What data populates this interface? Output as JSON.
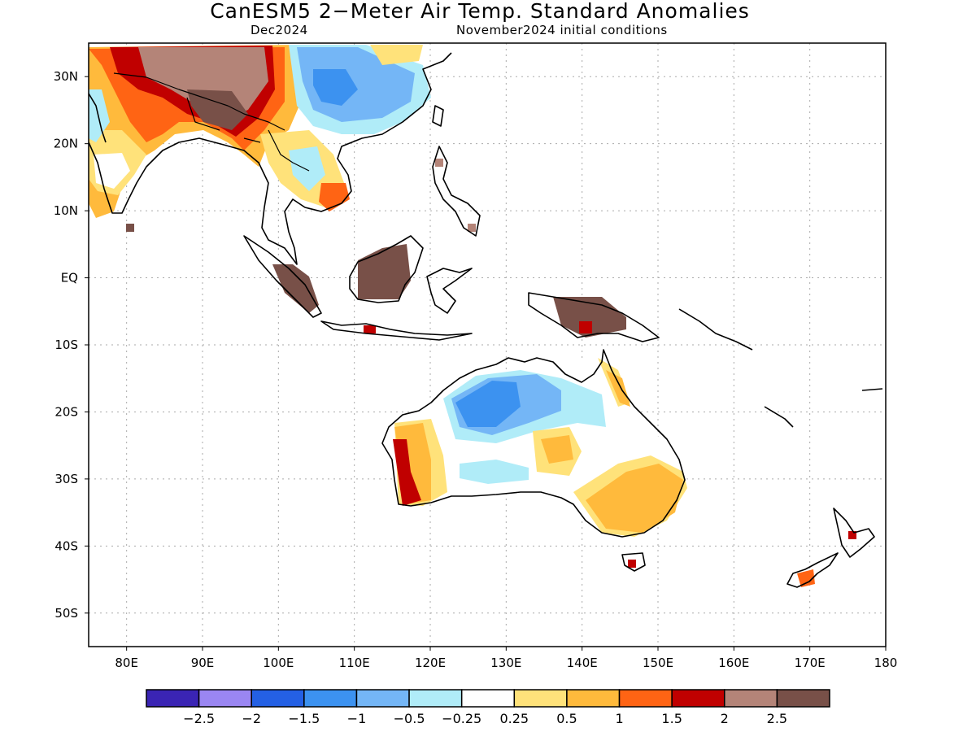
{
  "title": "CanESM5 2−Meter Air Temp. Standard Anomalies",
  "subtitle_left": "Dec2024",
  "subtitle_right": "November2024 initial conditions",
  "lon_ticks": [
    "80E",
    "90E",
    "100E",
    "110E",
    "120E",
    "130E",
    "140E",
    "150E",
    "160E",
    "170E",
    "180"
  ],
  "lat_ticks": [
    "30N",
    "20N",
    "10N",
    "EQ",
    "10S",
    "20S",
    "30S",
    "40S",
    "50S"
  ],
  "colorbar": {
    "colors": [
      "#3a24b4",
      "#9a86f2",
      "#2460e4",
      "#3c92f0",
      "#74b6f6",
      "#b0ecf8",
      "#ffffff",
      "#ffe27a",
      "#ffba3c",
      "#ff6414",
      "#c00000",
      "#b48478",
      "#785048"
    ],
    "labels": [
      "−2.5",
      "−2",
      "−1.5",
      "−1",
      "−0.5",
      "−0.25",
      "0.25",
      "0.5",
      "1",
      "1.5",
      "2",
      "2.5"
    ]
  },
  "colors": {
    "grid": "#aaaaaa",
    "coast": "#000000"
  }
}
